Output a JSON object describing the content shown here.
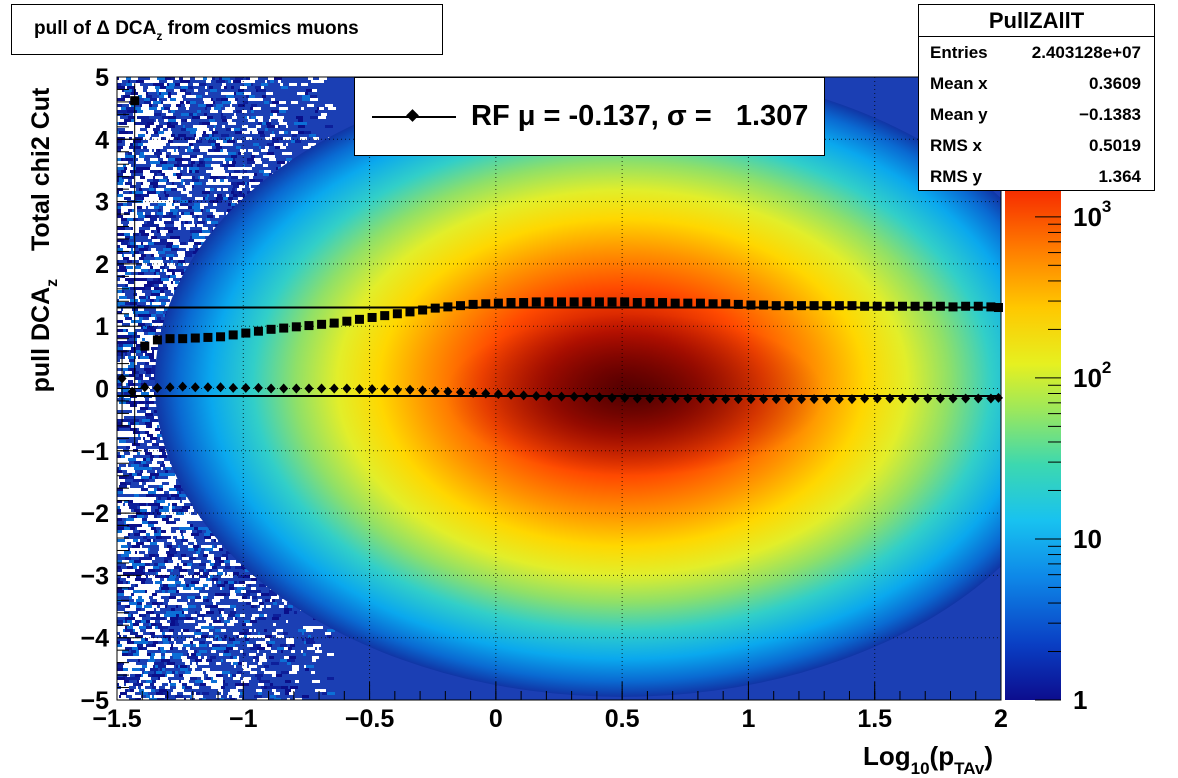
{
  "title": {
    "main": "pull of Δ DCA",
    "sub": "z",
    "rest": " from cosmics muons"
  },
  "stats": {
    "name": "PullZAllT",
    "rows": [
      {
        "label": "Entries",
        "value": "2.403128e+07"
      },
      {
        "label": "Mean x",
        "value": "0.3609"
      },
      {
        "label": "Mean y",
        "value": "−0.1383"
      },
      {
        "label": "RMS x",
        "value": "0.5019"
      },
      {
        "label": "RMS y",
        "value": "1.364"
      }
    ]
  },
  "legend": {
    "text": "RF μ = -0.137, σ =   1.307"
  },
  "chart_data": {
    "type": "heatmap",
    "x_title": {
      "main": "Log",
      "sub1": "10",
      "mid": "(p",
      "sub2": "TAv",
      "end": ")"
    },
    "y_title": {
      "line1": "Total chi2 Cut",
      "main": "pull DCA",
      "sub": "z"
    },
    "xlim": [
      -1.5,
      2
    ],
    "ylim": [
      -5,
      5
    ],
    "x_ticks": [
      {
        "v": -1.5,
        "label": "−1.5"
      },
      {
        "v": -1,
        "label": "−1"
      },
      {
        "v": -0.5,
        "label": "−0.5"
      },
      {
        "v": 0,
        "label": "0"
      },
      {
        "v": 0.5,
        "label": "0.5"
      },
      {
        "v": 1,
        "label": "1"
      },
      {
        "v": 1.5,
        "label": "1.5"
      },
      {
        "v": 2,
        "label": "2"
      }
    ],
    "y_ticks": [
      {
        "v": 5,
        "label": "5"
      },
      {
        "v": 4,
        "label": "4"
      },
      {
        "v": 3,
        "label": "3"
      },
      {
        "v": 2,
        "label": "2"
      },
      {
        "v": 1,
        "label": "1"
      },
      {
        "v": 0,
        "label": "0"
      },
      {
        "v": -1,
        "label": "−1"
      },
      {
        "v": -2,
        "label": "−2"
      },
      {
        "v": -3,
        "label": "−3"
      },
      {
        "v": -4,
        "label": "−4"
      },
      {
        "v": -5,
        "label": "−5"
      }
    ],
    "z_scale": "log",
    "zlim": [
      1,
      3000
    ],
    "z_ticks": [
      {
        "v": 1,
        "base": "1",
        "exp": ""
      },
      {
        "v": 10,
        "base": "10",
        "exp": ""
      },
      {
        "v": 100,
        "base": "10",
        "exp": "2"
      },
      {
        "v": 1000,
        "base": "10",
        "exp": "3"
      }
    ],
    "grid": true,
    "reference_lines": [
      {
        "name": "mean",
        "y": -0.12
      },
      {
        "name": "sigma",
        "y": 1.3
      }
    ],
    "series": [
      {
        "marker": "square",
        "points": [
          [
            -1.43,
            4.62
          ],
          [
            -1.39,
            0.68
          ],
          [
            -1.34,
            0.78
          ],
          [
            -1.29,
            0.8
          ],
          [
            -1.24,
            0.8
          ],
          [
            -1.19,
            0.81
          ],
          [
            -1.14,
            0.82
          ],
          [
            -1.09,
            0.83
          ],
          [
            -1.04,
            0.86
          ],
          [
            -0.99,
            0.89
          ],
          [
            -0.94,
            0.92
          ],
          [
            -0.89,
            0.95
          ],
          [
            -0.84,
            0.97
          ],
          [
            -0.79,
            0.99
          ],
          [
            -0.74,
            1.01
          ],
          [
            -0.69,
            1.03
          ],
          [
            -0.64,
            1.05
          ],
          [
            -0.59,
            1.08
          ],
          [
            -0.54,
            1.11
          ],
          [
            -0.49,
            1.14
          ],
          [
            -0.44,
            1.17
          ],
          [
            -0.39,
            1.2
          ],
          [
            -0.34,
            1.23
          ],
          [
            -0.29,
            1.26
          ],
          [
            -0.24,
            1.29
          ],
          [
            -0.19,
            1.31
          ],
          [
            -0.14,
            1.33
          ],
          [
            -0.09,
            1.35
          ],
          [
            -0.04,
            1.36
          ],
          [
            0.01,
            1.37
          ],
          [
            0.06,
            1.38
          ],
          [
            0.11,
            1.38
          ],
          [
            0.16,
            1.39
          ],
          [
            0.21,
            1.39
          ],
          [
            0.26,
            1.39
          ],
          [
            0.31,
            1.39
          ],
          [
            0.36,
            1.39
          ],
          [
            0.41,
            1.39
          ],
          [
            0.46,
            1.39
          ],
          [
            0.51,
            1.39
          ],
          [
            0.56,
            1.38
          ],
          [
            0.61,
            1.38
          ],
          [
            0.66,
            1.38
          ],
          [
            0.71,
            1.37
          ],
          [
            0.76,
            1.37
          ],
          [
            0.81,
            1.37
          ],
          [
            0.86,
            1.36
          ],
          [
            0.91,
            1.36
          ],
          [
            0.96,
            1.35
          ],
          [
            1.01,
            1.34
          ],
          [
            1.06,
            1.34
          ],
          [
            1.11,
            1.33
          ],
          [
            1.16,
            1.33
          ],
          [
            1.21,
            1.33
          ],
          [
            1.26,
            1.33
          ],
          [
            1.31,
            1.33
          ],
          [
            1.36,
            1.33
          ],
          [
            1.41,
            1.33
          ],
          [
            1.46,
            1.32
          ],
          [
            1.51,
            1.32
          ],
          [
            1.56,
            1.32
          ],
          [
            1.61,
            1.32
          ],
          [
            1.66,
            1.32
          ],
          [
            1.71,
            1.32
          ],
          [
            1.76,
            1.32
          ],
          [
            1.81,
            1.31
          ],
          [
            1.86,
            1.32
          ],
          [
            1.91,
            1.32
          ],
          [
            1.96,
            1.31
          ],
          [
            1.99,
            1.3
          ]
        ]
      },
      {
        "marker": "diamond",
        "points": [
          [
            -1.48,
            0.16
          ],
          [
            -1.44,
            -0.05
          ],
          [
            -1.39,
            0.02
          ],
          [
            -1.34,
            0.01
          ],
          [
            -1.29,
            0.02
          ],
          [
            -1.24,
            0.03
          ],
          [
            -1.19,
            0.02
          ],
          [
            -1.14,
            0.02
          ],
          [
            -1.09,
            0.02
          ],
          [
            -1.04,
            0.01
          ],
          [
            -0.99,
            0.01
          ],
          [
            -0.94,
            0.01
          ],
          [
            -0.89,
            0.0
          ],
          [
            -0.84,
            0.0
          ],
          [
            -0.79,
            0.0
          ],
          [
            -0.74,
            0.0
          ],
          [
            -0.69,
            0.0
          ],
          [
            -0.64,
            0.0
          ],
          [
            -0.59,
            0.0
          ],
          [
            -0.54,
            -0.01
          ],
          [
            -0.49,
            -0.01
          ],
          [
            -0.44,
            -0.01
          ],
          [
            -0.39,
            -0.02
          ],
          [
            -0.34,
            -0.02
          ],
          [
            -0.29,
            -0.03
          ],
          [
            -0.24,
            -0.04
          ],
          [
            -0.19,
            -0.05
          ],
          [
            -0.14,
            -0.06
          ],
          [
            -0.09,
            -0.07
          ],
          [
            -0.04,
            -0.08
          ],
          [
            0.01,
            -0.09
          ],
          [
            0.06,
            -0.1
          ],
          [
            0.11,
            -0.11
          ],
          [
            0.16,
            -0.12
          ],
          [
            0.21,
            -0.12
          ],
          [
            0.26,
            -0.13
          ],
          [
            0.31,
            -0.13
          ],
          [
            0.36,
            -0.14
          ],
          [
            0.41,
            -0.14
          ],
          [
            0.46,
            -0.15
          ],
          [
            0.51,
            -0.15
          ],
          [
            0.56,
            -0.16
          ],
          [
            0.61,
            -0.16
          ],
          [
            0.66,
            -0.16
          ],
          [
            0.71,
            -0.16
          ],
          [
            0.76,
            -0.16
          ],
          [
            0.81,
            -0.16
          ],
          [
            0.86,
            -0.17
          ],
          [
            0.91,
            -0.17
          ],
          [
            0.96,
            -0.17
          ],
          [
            1.01,
            -0.17
          ],
          [
            1.06,
            -0.17
          ],
          [
            1.11,
            -0.17
          ],
          [
            1.16,
            -0.17
          ],
          [
            1.21,
            -0.17
          ],
          [
            1.26,
            -0.17
          ],
          [
            1.31,
            -0.17
          ],
          [
            1.36,
            -0.17
          ],
          [
            1.41,
            -0.17
          ],
          [
            1.46,
            -0.16
          ],
          [
            1.51,
            -0.16
          ],
          [
            1.56,
            -0.16
          ],
          [
            1.61,
            -0.16
          ],
          [
            1.66,
            -0.16
          ],
          [
            1.71,
            -0.16
          ],
          [
            1.76,
            -0.16
          ],
          [
            1.81,
            -0.16
          ],
          [
            1.86,
            -0.16
          ],
          [
            1.91,
            -0.16
          ],
          [
            1.96,
            -0.16
          ],
          [
            1.99,
            -0.15
          ]
        ]
      }
    ]
  }
}
